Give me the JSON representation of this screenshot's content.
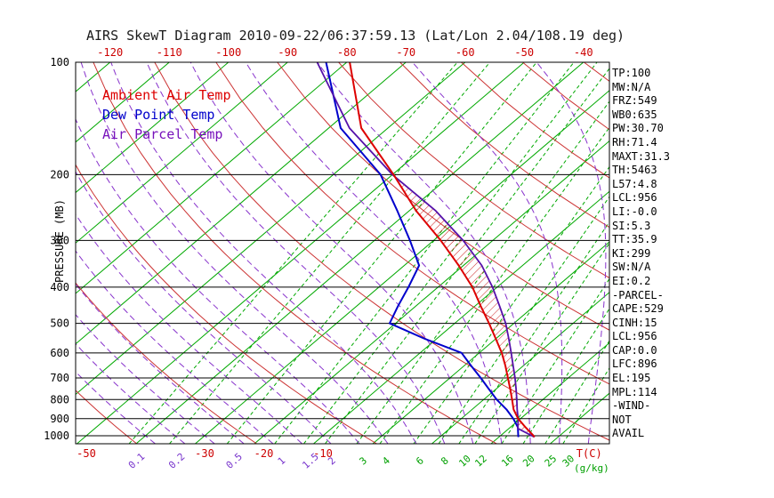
{
  "chart_data": {
    "type": "skewt-log-p",
    "title": "AIRS SkewT Diagram 2010-09-22/06:37:59.13 (Lat/Lon 2.04/108.19 deg)",
    "ylabel": "PRESSURE (MB)",
    "xlabel": "T(C)",
    "mixing_ratio_unit": "(g/kg)",
    "pressure_range_mb": [
      100,
      1050
    ],
    "pressure_ticks_mb": [
      100,
      200,
      300,
      400,
      500,
      600,
      700,
      800,
      900,
      1000
    ],
    "top_temp_ticks_c": [
      -120,
      -110,
      -100,
      -90,
      -80,
      -70,
      -60,
      -50,
      -40
    ],
    "bottom_temp_ticks_c": [
      -50,
      -30,
      -20,
      -10
    ],
    "isotherms_c": {
      "min": -120,
      "max": 40,
      "step": 10
    },
    "dry_adiabats_theta_k": [
      230,
      250,
      270,
      290,
      310,
      330,
      350,
      370,
      390,
      410,
      430,
      450
    ],
    "moist_adiabats_t1000_c": [
      -40,
      -35,
      -30,
      -25,
      -20,
      -15,
      -10,
      -5,
      0,
      5,
      10,
      15,
      20,
      25,
      30,
      35,
      40
    ],
    "mixing_ratio_lines": [
      {
        "value": "0.1",
        "t_at_1000mb": -41.6,
        "t_at_100mb": -61.3,
        "label_color": "purple"
      },
      {
        "value": "0.2",
        "t_at_1000mb": -34.8,
        "t_at_100mb": -55.8,
        "label_color": "purple"
      },
      {
        "value": "0.5",
        "t_at_1000mb": -25.1,
        "t_at_100mb": -47.9,
        "label_color": "purple"
      },
      {
        "value": "1",
        "t_at_1000mb": -17.1,
        "t_at_100mb": -41.6,
        "label_color": "purple"
      },
      {
        "value": "1.5",
        "t_at_1000mb": -12.2,
        "t_at_100mb": -37.7,
        "label_color": "purple"
      },
      {
        "value": "2",
        "t_at_1000mb": -8.6,
        "t_at_100mb": -34.8,
        "label_color": "purple"
      },
      {
        "value": "3",
        "t_at_1000mb": -3.3,
        "t_at_100mb": -30.7,
        "label_color": "green"
      },
      {
        "value": "4",
        "t_at_1000mb": 0.6,
        "t_at_100mb": -27.6,
        "label_color": "green"
      },
      {
        "value": "6",
        "t_at_1000mb": 6.3,
        "t_at_100mb": -23.1,
        "label_color": "green"
      },
      {
        "value": "8",
        "t_at_1000mb": 10.5,
        "t_at_100mb": -19.9,
        "label_color": "green"
      },
      {
        "value": "10",
        "t_at_1000mb": 13.9,
        "t_at_100mb": -17.3,
        "label_color": "green"
      },
      {
        "value": "12",
        "t_at_1000mb": 16.6,
        "t_at_100mb": -15.1,
        "label_color": "green"
      },
      {
        "value": "16",
        "t_at_1000mb": 21.1,
        "t_at_100mb": -11.7,
        "label_color": "green"
      },
      {
        "value": "20",
        "t_at_1000mb": 24.7,
        "t_at_100mb": -9.0,
        "label_color": "green"
      },
      {
        "value": "25",
        "t_at_1000mb": 28.4,
        "t_at_100mb": -6.2,
        "label_color": "green"
      },
      {
        "value": "30",
        "t_at_1000mb": 31.4,
        "t_at_100mb": -3.9,
        "label_color": "green"
      }
    ],
    "legend": [
      {
        "label": "Ambient Air Temp",
        "color": "#dd0000"
      },
      {
        "label": "Dew Point Temp",
        "color": "#0000cc"
      },
      {
        "label": "Air Parcel Temp",
        "color": "#7711bb"
      }
    ],
    "sounding": {
      "pressure_mb": [
        1008,
        1000,
        950,
        900,
        850,
        800,
        750,
        700,
        650,
        600,
        550,
        500,
        450,
        400,
        350,
        300,
        250,
        200,
        150,
        100
      ],
      "temp_c": [
        26.0,
        25.6,
        22.6,
        19.6,
        17.0,
        14.8,
        12.4,
        9.8,
        7.0,
        3.8,
        0.0,
        -4.2,
        -9.0,
        -14.2,
        -20.8,
        -28.8,
        -38.8,
        -49.8,
        -64.5,
        -79.5
      ],
      "dewpoint_c": [
        23.3,
        23.0,
        21.3,
        18.8,
        15.8,
        12.2,
        8.8,
        5.2,
        1.2,
        -3.0,
        -12.0,
        -21.0,
        -23.0,
        -25.0,
        -27.5,
        -34.0,
        -42.0,
        -52.0,
        -68.0,
        -83.5
      ]
    },
    "parcel": {
      "pressure_mb": [
        1008,
        956,
        900,
        850,
        800,
        750,
        700,
        650,
        600,
        550,
        500,
        450,
        400,
        350,
        300,
        250,
        200,
        150,
        100
      ],
      "temp_c": [
        26.0,
        21.5,
        19.6,
        17.6,
        15.6,
        13.4,
        11.0,
        8.3,
        5.4,
        2.2,
        -1.4,
        -5.8,
        -10.8,
        -16.9,
        -25.0,
        -35.5,
        -50.0,
        -66.5,
        -85.0
      ]
    },
    "hatch_regions": [
      {
        "p_from": 1008,
        "p_to": 896
      },
      {
        "p_from": 896,
        "p_to": 204
      }
    ]
  },
  "indices_panel": {
    "lines": [
      "TP:100",
      "MW:N/A",
      "FRZ:549",
      "WB0:635",
      "PW:30.70",
      "RH:71.4",
      "MAXT:31.3",
      "TH:5463",
      "L57:4.8",
      "LCL:956",
      "LI:-0.0",
      "SI:5.3",
      "TT:35.9",
      "KI:299",
      "SW:N/A",
      "EI:0.2",
      "-PARCEL-",
      "CAPE:529",
      "CINH:15",
      "LCL:956",
      "CAP:0.0",
      "LFC:896",
      "EL:195",
      "MPL:114",
      "-WIND-",
      "NOT",
      "AVAIL"
    ]
  },
  "colors": {
    "isotherm_green": "#00a800",
    "mixing_green": "#00a800",
    "mixr_label_green": "#00a000",
    "mixr_label_purple": "#7733cc",
    "dry_adiabat_red": "#cc3333",
    "moist_adiabat_purple": "#8833cc",
    "sounding_temp_red": "#dd0000",
    "sounding_dew_blue": "#0000cc",
    "parcel_purple": "#5511aa",
    "axis_label_red": "#cc0000",
    "hatch_red": "#cc2222",
    "black": "#000000",
    "background": "#ffffff"
  }
}
